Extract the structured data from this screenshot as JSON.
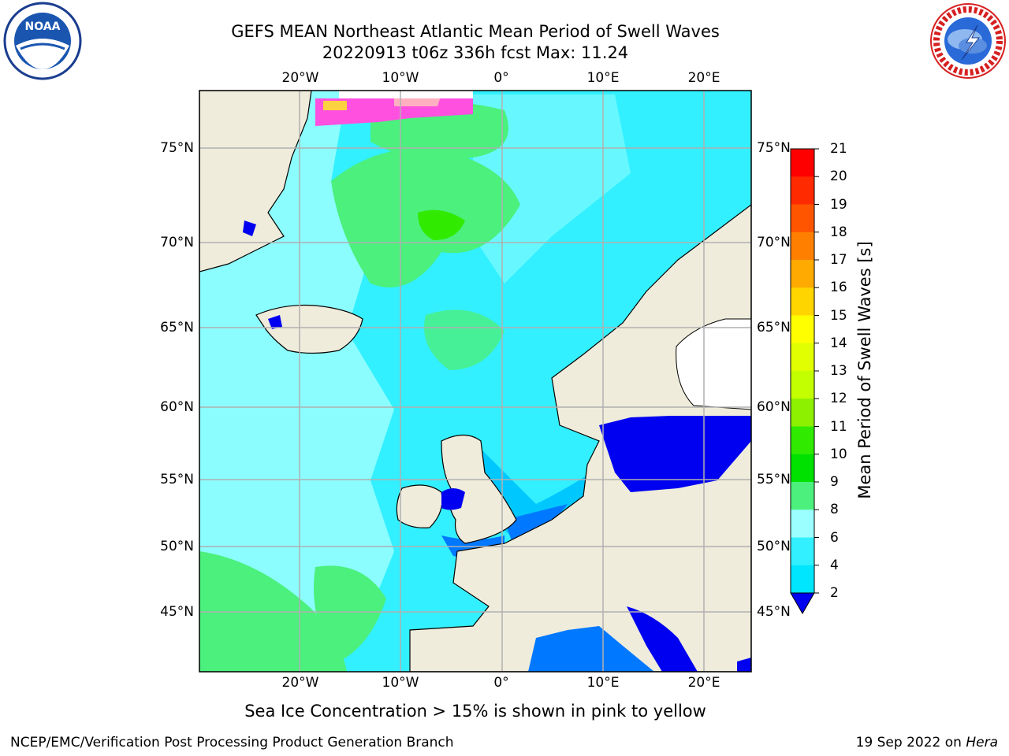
{
  "title_line1": "GEFS MEAN Northeast Atlantic Mean Period of Swell Waves",
  "title_line2": "20220913 t06z 336h fcst   Max: 11.24",
  "map": {
    "lon_labels": [
      "20°W",
      "10°W",
      "0°",
      "10°E",
      "20°E"
    ],
    "lon_values": [
      -20,
      -10,
      0,
      10,
      20
    ],
    "lat_labels": [
      "75°N",
      "70°N",
      "65°N",
      "60°N",
      "55°N",
      "50°N",
      "45°N"
    ],
    "lat_values": [
      75,
      70,
      65,
      60,
      55,
      50,
      45
    ],
    "land_color": "#efecdc",
    "ocean_color": "#32f0ff",
    "grid_color": "#b0b0b0"
  },
  "colorbar": {
    "label": "Mean Period of Swell Waves [s]",
    "ticks": [
      "21",
      "20",
      "19",
      "18",
      "17",
      "16",
      "15",
      "14",
      "13",
      "12",
      "11",
      "10",
      "9",
      "8",
      "6",
      "4",
      "2"
    ],
    "colors": [
      "#ff0000",
      "#ff2a00",
      "#ff5500",
      "#ff8000",
      "#ffaa00",
      "#ffd500",
      "#ffff00",
      "#e1ff00",
      "#c3ff00",
      "#8cf000",
      "#30eb00",
      "#00e100",
      "#4bf07d",
      "#9bffff",
      "#32f0ff",
      "#00e6ff",
      "#0078ff"
    ],
    "under_color": "#0000f0"
  },
  "footnote": "Sea Ice Concentration > 15% is shown in pink to yellow",
  "credit_left": "NCEP/EMC/Verification Post Processing Product Generation Branch",
  "credit_right_date": "19 Sep 2022 on ",
  "credit_right_host": "Hera",
  "logos": {
    "left": "noaa-logo",
    "right": "nws-logo",
    "noaa_text": "NOAA",
    "nws_text": "NATIONAL WEATHER SERVICE"
  }
}
